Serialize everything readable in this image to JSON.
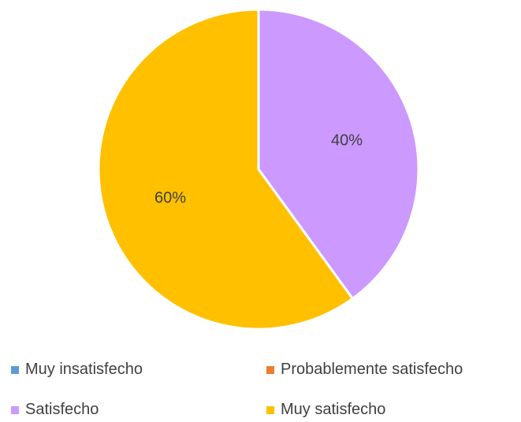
{
  "chart_data": {
    "type": "pie",
    "title": "",
    "categories": [
      "Muy insatisfecho",
      "Probablemente satisfecho",
      "Satisfecho",
      "Muy satisfecho"
    ],
    "values": [
      0,
      0,
      40,
      60
    ],
    "value_labels": [
      "",
      "",
      "40%",
      "60%"
    ],
    "colors": [
      "#5B9BD5",
      "#ED7D31",
      "#CC99FF",
      "#FFC000"
    ],
    "start_angle_deg": 0,
    "direction": "clockwise",
    "legend_position": "bottom"
  },
  "legend": {
    "items": [
      {
        "label": "Muy insatisfecho",
        "color": "#5B9BD5"
      },
      {
        "label": "Probablemente satisfecho",
        "color": "#ED7D31"
      },
      {
        "label": "Satisfecho",
        "color": "#CC99FF"
      },
      {
        "label": "Muy satisfecho",
        "color": "#FFC000"
      }
    ]
  }
}
